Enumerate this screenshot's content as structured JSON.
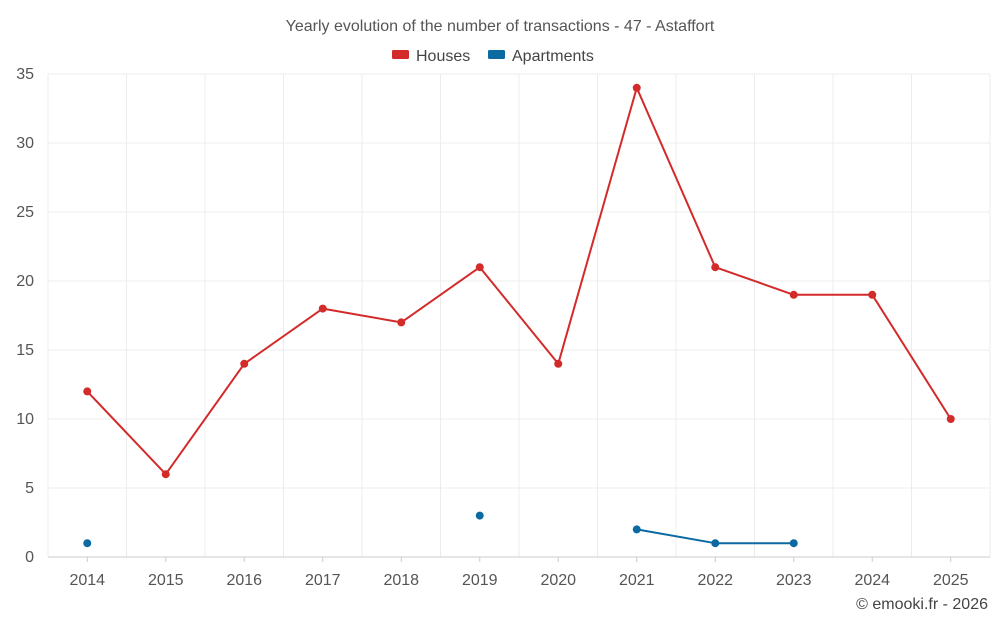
{
  "chart_data": {
    "type": "line",
    "title": "Yearly evolution of the number of transactions - 47 - Astaffort",
    "xlabel": "",
    "ylabel": "",
    "categories": [
      "2014",
      "2015",
      "2016",
      "2017",
      "2018",
      "2019",
      "2020",
      "2021",
      "2022",
      "2023",
      "2024",
      "2025"
    ],
    "ylim": [
      0,
      35
    ],
    "yticks": [
      0,
      5,
      10,
      15,
      20,
      25,
      30,
      35
    ],
    "grid": true,
    "legend_position": "top-center",
    "series": [
      {
        "name": "Houses",
        "color": "#d32a2a",
        "values": [
          12,
          6,
          14,
          18,
          17,
          21,
          14,
          34,
          21,
          19,
          19,
          10
        ]
      },
      {
        "name": "Apartments",
        "color": "#0a6aa1",
        "values": [
          1,
          null,
          null,
          null,
          null,
          3,
          null,
          2,
          1,
          1,
          null,
          null
        ]
      }
    ]
  },
  "credit": "© emooki.fr - 2026"
}
